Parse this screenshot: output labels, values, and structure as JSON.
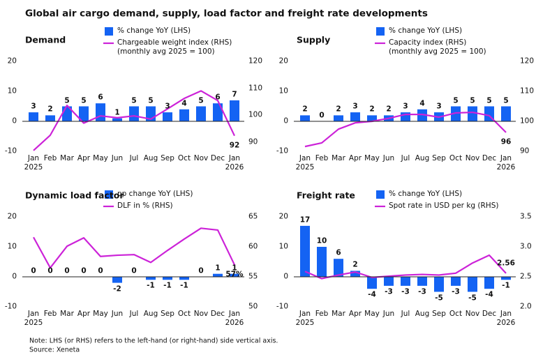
{
  "title": "Global air cargo demand, supply, load factor and freight rate developments",
  "chart_data": [
    {
      "type": "combo",
      "title": "Demand",
      "categories": [
        "Jan\n2025",
        "Feb",
        "Mar",
        "Apr",
        "May",
        "Jun",
        "Jul",
        "Aug",
        "Sep",
        "Oct",
        "Nov",
        "Dec",
        "Jan\n2026"
      ],
      "series": [
        {
          "name": "% change YoY (LHS)",
          "type": "bar",
          "color": "#1463f3",
          "values": [
            3,
            2,
            5,
            5,
            6,
            1,
            5,
            5,
            3,
            4,
            5,
            6,
            7
          ]
        },
        {
          "name": "Chargeable weight index (RHS)\n(monthly avg 2025 = 100)",
          "type": "line",
          "axis": "y2",
          "color": "#cc22d8",
          "values": [
            86.8,
            92.5,
            103.6,
            97,
            99.7,
            99,
            99.7,
            98.5,
            102.3,
            106.2,
            109,
            105.4,
            92.3
          ],
          "value_labels": [
            null,
            null,
            null,
            null,
            null,
            null,
            null,
            null,
            null,
            null,
            null,
            null,
            "92"
          ]
        }
      ],
      "ylim": [
        -10,
        20
      ],
      "yticks": [
        -10,
        0,
        10,
        20
      ],
      "y2lim": [
        86.5,
        120
      ],
      "y2ticks": [
        90,
        100,
        110,
        120
      ],
      "end_label_side": "below"
    },
    {
      "type": "combo",
      "title": "Supply",
      "categories": [
        "Jan\n2025",
        "Feb",
        "Mar",
        "Apr",
        "May",
        "Jun",
        "Jul",
        "Aug",
        "Sep",
        "Oct",
        "Nov",
        "Dec",
        "Jan\n2026"
      ],
      "series": [
        {
          "name": "% change YoY (LHS)",
          "type": "bar",
          "color": "#1463f3",
          "values": [
            2,
            0,
            2,
            3,
            2,
            2,
            3,
            4,
            3,
            5,
            5,
            5,
            5
          ]
        },
        {
          "name": "Capacity index (RHS)\n(monthly avg 2025 = 100)",
          "type": "line",
          "axis": "y2",
          "color": "#cc22d8",
          "values": [
            91.6,
            92.8,
            97.4,
            99.5,
            100,
            101,
            102.3,
            102.3,
            101.4,
            102.8,
            103,
            101.9,
            96.3
          ],
          "value_labels": [
            null,
            null,
            null,
            null,
            null,
            null,
            null,
            null,
            null,
            null,
            null,
            null,
            "96"
          ]
        }
      ],
      "ylim": [
        -10,
        20
      ],
      "yticks": [
        -10,
        0,
        10,
        20
      ],
      "y2lim": [
        90,
        120
      ],
      "y2ticks": [
        90,
        100,
        110,
        120
      ],
      "end_label_side": "below"
    },
    {
      "type": "combo",
      "title": "Dynamic load factor",
      "categories": [
        "Jan\n2025",
        "Feb",
        "Mar",
        "Apr",
        "May",
        "Jun",
        "Jul",
        "Aug",
        "Sep",
        "Oct",
        "Nov",
        "Dec",
        "Jan\n2026"
      ],
      "series": [
        {
          "name": "pp change YoY (LHS)",
          "type": "bar",
          "color": "#1463f3",
          "values": [
            0,
            0,
            0,
            0,
            0,
            -2,
            0,
            -1,
            -1,
            -1,
            0,
            1,
            1
          ]
        },
        {
          "name": "DLF in % (RHS)",
          "type": "line",
          "axis": "y2",
          "color": "#cc22d8",
          "values": [
            61.6,
            56.5,
            60.1,
            61.5,
            58.4,
            58.6,
            58.7,
            57.4,
            59.4,
            61.3,
            63.1,
            62.8,
            57
          ],
          "value_labels": [
            null,
            null,
            null,
            null,
            null,
            null,
            null,
            null,
            null,
            null,
            null,
            null,
            "57%"
          ]
        }
      ],
      "ylim": [
        -10,
        20
      ],
      "yticks": [
        -10,
        0,
        10,
        20
      ],
      "y2lim": [
        50,
        65
      ],
      "y2ticks": [
        50,
        55,
        60,
        65
      ],
      "end_label_side": "below"
    },
    {
      "type": "combo",
      "title": "Freight rate",
      "categories": [
        "Jan\n2025",
        "Feb",
        "Mar",
        "Apr",
        "May",
        "Jun",
        "Jul",
        "Aug",
        "Sep",
        "Oct",
        "Nov",
        "Dec",
        "Jan\n2026"
      ],
      "series": [
        {
          "name": "% change YoY (LHS)",
          "type": "bar",
          "color": "#1463f3",
          "values": [
            17,
            10,
            6,
            2,
            -4,
            -3,
            -3,
            -3,
            -5,
            -3,
            -5,
            -4,
            -1
          ]
        },
        {
          "name": "Spot rate in USD per kg (RHS)",
          "type": "line",
          "axis": "y2",
          "color": "#cc22d8",
          "values": [
            2.59,
            2.47,
            2.53,
            2.58,
            2.49,
            2.51,
            2.53,
            2.54,
            2.53,
            2.56,
            2.73,
            2.86,
            2.56
          ],
          "value_labels": [
            null,
            null,
            null,
            null,
            null,
            null,
            null,
            null,
            null,
            null,
            null,
            null,
            "2.56"
          ]
        }
      ],
      "ylim": [
        -10,
        20
      ],
      "yticks": [
        -10,
        0,
        10,
        20
      ],
      "y2lim": [
        2,
        3.5
      ],
      "y2ticks": [
        {
          "value": 2,
          "label": "2.0"
        },
        2.5,
        {
          "value": 3,
          "label": "3.0"
        },
        3.5
      ],
      "end_label_side": "above"
    }
  ],
  "note": "Note: LHS (or RHS) refers to the left-hand (or right-hand) side vertical axis.",
  "source": "Source: Xeneta"
}
